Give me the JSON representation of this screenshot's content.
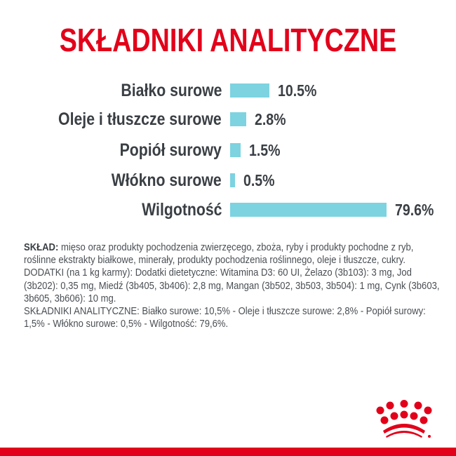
{
  "chart_data": {
    "type": "bar",
    "orientation": "horizontal",
    "title": "SKŁADNIKI ANALITYCZNE",
    "categories": [
      "Białko surowe",
      "Oleje i tłuszcze surowe",
      "Popiół surowy",
      "Włókno surowe",
      "Wilgotność"
    ],
    "values": [
      10.5,
      2.8,
      1.5,
      0.5,
      79.6
    ],
    "value_labels": [
      "10.5%",
      "2.8%",
      "1.5%",
      "0.5%",
      "79.6%"
    ],
    "bar_color": "#7dd3e0",
    "grid": false
  },
  "description": {
    "sklad_label": "SKŁAD:",
    "sklad_text": " mięso oraz produkty pochodzenia zwierzęcego, zboża, ryby i produkty pochodne z ryb, roślinne ekstrakty białkowe, minerały, produkty pochodzenia roślinnego, oleje i tłuszcze, cukry.",
    "dodatki": "DODATKI (na 1 kg karmy): Dodatki dietetyczne: Witamina D3: 60 UI, Żelazo (3b103): 3 mg, Jod (3b202): 0,35 mg, Miedź (3b405, 3b406): 2,8 mg, Mangan (3b502, 3b503, 3b504): 1 mg, Cynk (3b603, 3b605, 3b606): 10 mg.",
    "analityczne": "SKŁADNIKI ANALITYCZNE: Białko surowe: 10,5% - Oleje i tłuszcze surowe: 2,8% - Popiół surowy: 1,5% - Włókno surowe: 0,5% - Wilgotność: 79,6%."
  },
  "brand": {
    "logo": "royal-canin-crown",
    "color": "#e2001a"
  }
}
